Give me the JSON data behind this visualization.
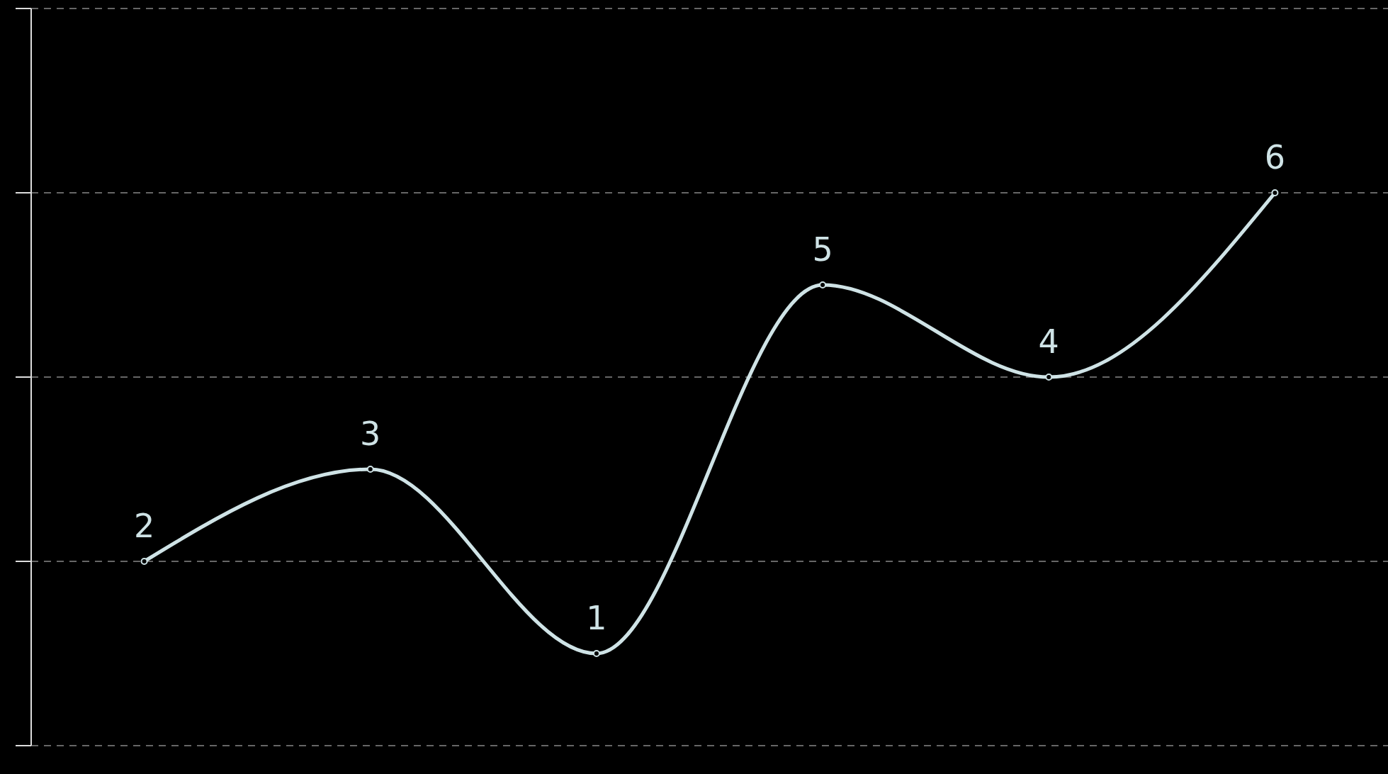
{
  "chart_data": {
    "type": "line",
    "categories": [
      null,
      null,
      null,
      null,
      null,
      null
    ],
    "series": [
      {
        "color": "#cfe3e6",
        "values": [
          2,
          3,
          1,
          5,
          4,
          6
        ]
      }
    ],
    "ylim": [
      0,
      8
    ],
    "yticks": [
      {
        "value": 0,
        "label": null
      },
      {
        "value": 2,
        "label": null
      },
      {
        "value": 4,
        "label": null
      },
      {
        "value": 6,
        "label": null
      },
      {
        "value": 8,
        "label": null
      }
    ],
    "grid": "y",
    "data_labels": true,
    "marker": "circle",
    "line_style": "solid"
  }
}
